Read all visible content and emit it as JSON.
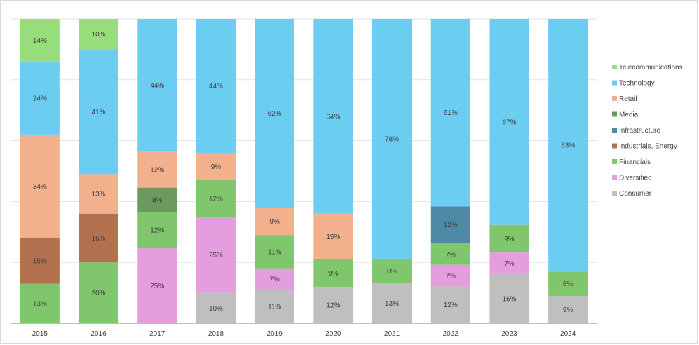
{
  "chart_data": {
    "type": "bar",
    "stacked": true,
    "percent_stacked": true,
    "title": "",
    "xlabel": "",
    "ylabel": "",
    "ylim": [
      0,
      100
    ],
    "grid": true,
    "legend_position": "right",
    "categories": [
      "2015",
      "2016",
      "2017",
      "2018",
      "2019",
      "2020",
      "2021",
      "2022",
      "2023",
      "2024"
    ],
    "series": [
      {
        "name": "Consumer",
        "color": "#bfbfbf",
        "values": [
          0,
          0,
          0,
          10,
          11,
          12,
          13,
          12,
          16,
          9
        ]
      },
      {
        "name": "Diversified",
        "color": "#e59edd",
        "values": [
          0,
          0,
          25,
          25,
          7,
          0,
          0,
          7,
          7,
          0
        ]
      },
      {
        "name": "Financials",
        "color": "#80c66c",
        "values": [
          13,
          20,
          12,
          12,
          11,
          9,
          8,
          7,
          9,
          8
        ]
      },
      {
        "name": "Industrials, Energy",
        "color": "#b3714f",
        "values": [
          15,
          16,
          0,
          0,
          0,
          0,
          0,
          0,
          0,
          0
        ]
      },
      {
        "name": "Infrastructure",
        "color": "#4e8aa5",
        "values": [
          0,
          0,
          0,
          0,
          0,
          0,
          0,
          12,
          0,
          0
        ]
      },
      {
        "name": "Media",
        "color": "#6b9a5e",
        "values": [
          0,
          0,
          8,
          0,
          0,
          0,
          0,
          0,
          0,
          0
        ]
      },
      {
        "name": "Retail",
        "color": "#f2b08d",
        "values": [
          34,
          13,
          12,
          9,
          9,
          15,
          0,
          0,
          0,
          0
        ]
      },
      {
        "name": "Technology",
        "color": "#6ccdf2",
        "values": [
          24,
          41,
          44,
          44,
          62,
          64,
          78,
          61,
          67,
          83
        ]
      },
      {
        "name": "Telecommunications",
        "color": "#98dd7c",
        "values": [
          14,
          10,
          0,
          0,
          0,
          0,
          0,
          0,
          0,
          0
        ]
      }
    ],
    "label_suffix": "%"
  }
}
